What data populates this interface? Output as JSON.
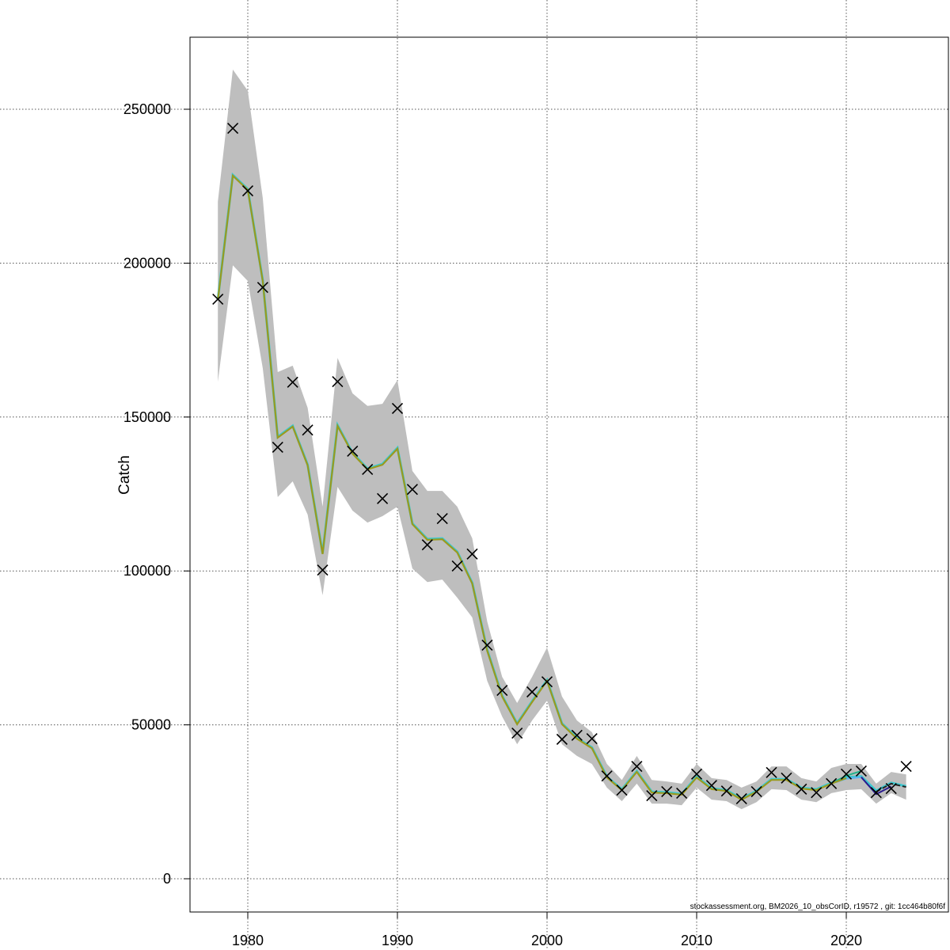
{
  "chart_data": {
    "type": "line",
    "title": "",
    "xlabel": "",
    "ylabel": "Catch",
    "xlim": [
      1976,
      2025
    ],
    "ylim": [
      -10000,
      274000
    ],
    "x_ticks": [
      "1980",
      "1990",
      "2000",
      "2010",
      "2020"
    ],
    "y_ticks": [
      "0",
      "50000",
      "100000",
      "150000",
      "200000",
      "250000"
    ],
    "grid": true,
    "footer": "stockassessment.org, BM2026_10_obsCorID, r19572 , git: 1cc464b80f6f",
    "colors": {
      "band": "#bebebe",
      "fit": "#9a9a1e",
      "fit_under": "#3cc8d0",
      "observed": "#000000"
    },
    "years": [
      1978,
      1979,
      1980,
      1981,
      1982,
      1983,
      1984,
      1985,
      1986,
      1987,
      1988,
      1989,
      1990,
      1991,
      1992,
      1993,
      1994,
      1995,
      1996,
      1997,
      1998,
      1999,
      2000,
      2001,
      2002,
      2003,
      2004,
      2005,
      2006,
      2007,
      2008,
      2009,
      2010,
      2011,
      2012,
      2013,
      2014,
      2015,
      2016,
      2017,
      2018,
      2019,
      2020,
      2021,
      2022,
      2023,
      2024
    ],
    "observed": [
      188300,
      243800,
      223500,
      192100,
      140200,
      161300,
      145800,
      100300,
      161500,
      138900,
      133000,
      123500,
      152800,
      126500,
      108500,
      117000,
      101600,
      105500,
      75900,
      61200,
      47300,
      60700,
      64000,
      45300,
      46600,
      45500,
      33400,
      28800,
      36500,
      27000,
      28300,
      27800,
      34000,
      30300,
      28500,
      26000,
      28300,
      34500,
      32700,
      29100,
      28000,
      30900,
      34000,
      35000,
      28000,
      29300,
      36500
    ],
    "fit": [
      188000,
      228400,
      223800,
      194200,
      143300,
      146900,
      134300,
      105500,
      147100,
      138100,
      133000,
      134500,
      139700,
      115200,
      110100,
      110300,
      106000,
      95900,
      74100,
      59200,
      50200,
      57400,
      64300,
      50200,
      45500,
      42400,
      32900,
      28800,
      34700,
      28000,
      27800,
      27300,
      32900,
      29100,
      28500,
      25700,
      28300,
      32100,
      32100,
      29300,
      28800,
      30900,
      32700,
      33000,
      28300,
      30900,
      29800
    ],
    "upper": [
      220000,
      262900,
      256000,
      221200,
      164600,
      166700,
      153000,
      120900,
      169200,
      157700,
      153600,
      154300,
      162000,
      132500,
      126000,
      126000,
      120900,
      110600,
      83600,
      65600,
      57100,
      65600,
      75100,
      59200,
      51400,
      47600,
      37300,
      32100,
      39900,
      32100,
      31600,
      30900,
      37300,
      32700,
      32100,
      29600,
      31600,
      36500,
      36500,
      32700,
      31600,
      36000,
      37300,
      37300,
      30900,
      34700,
      33900
    ],
    "lower": [
      161500,
      199300,
      194200,
      165900,
      124000,
      129100,
      118300,
      92100,
      127300,
      119600,
      115700,
      117800,
      120900,
      100800,
      96400,
      97200,
      91300,
      84900,
      64300,
      52700,
      43700,
      51400,
      57900,
      43700,
      39900,
      37300,
      29600,
      25200,
      30900,
      24400,
      24400,
      23900,
      29600,
      25700,
      25200,
      22600,
      24900,
      29100,
      28800,
      25700,
      24900,
      27800,
      28800,
      29100,
      24400,
      27800,
      25700
    ],
    "retro_peels": [
      {
        "color": "#1fb38a",
        "years": [
          2019,
          2020,
          2021
        ],
        "values": [
          31000,
          33500,
          35000
        ]
      },
      {
        "color": "#5ab4f0",
        "years": [
          2019,
          2020,
          2021,
          2022
        ],
        "values": [
          30900,
          32500,
          33000,
          27500
        ]
      },
      {
        "color": "#2a1a8c",
        "years": [
          2021,
          2022,
          2023
        ],
        "values": [
          33000,
          27500,
          30000
        ]
      }
    ]
  }
}
